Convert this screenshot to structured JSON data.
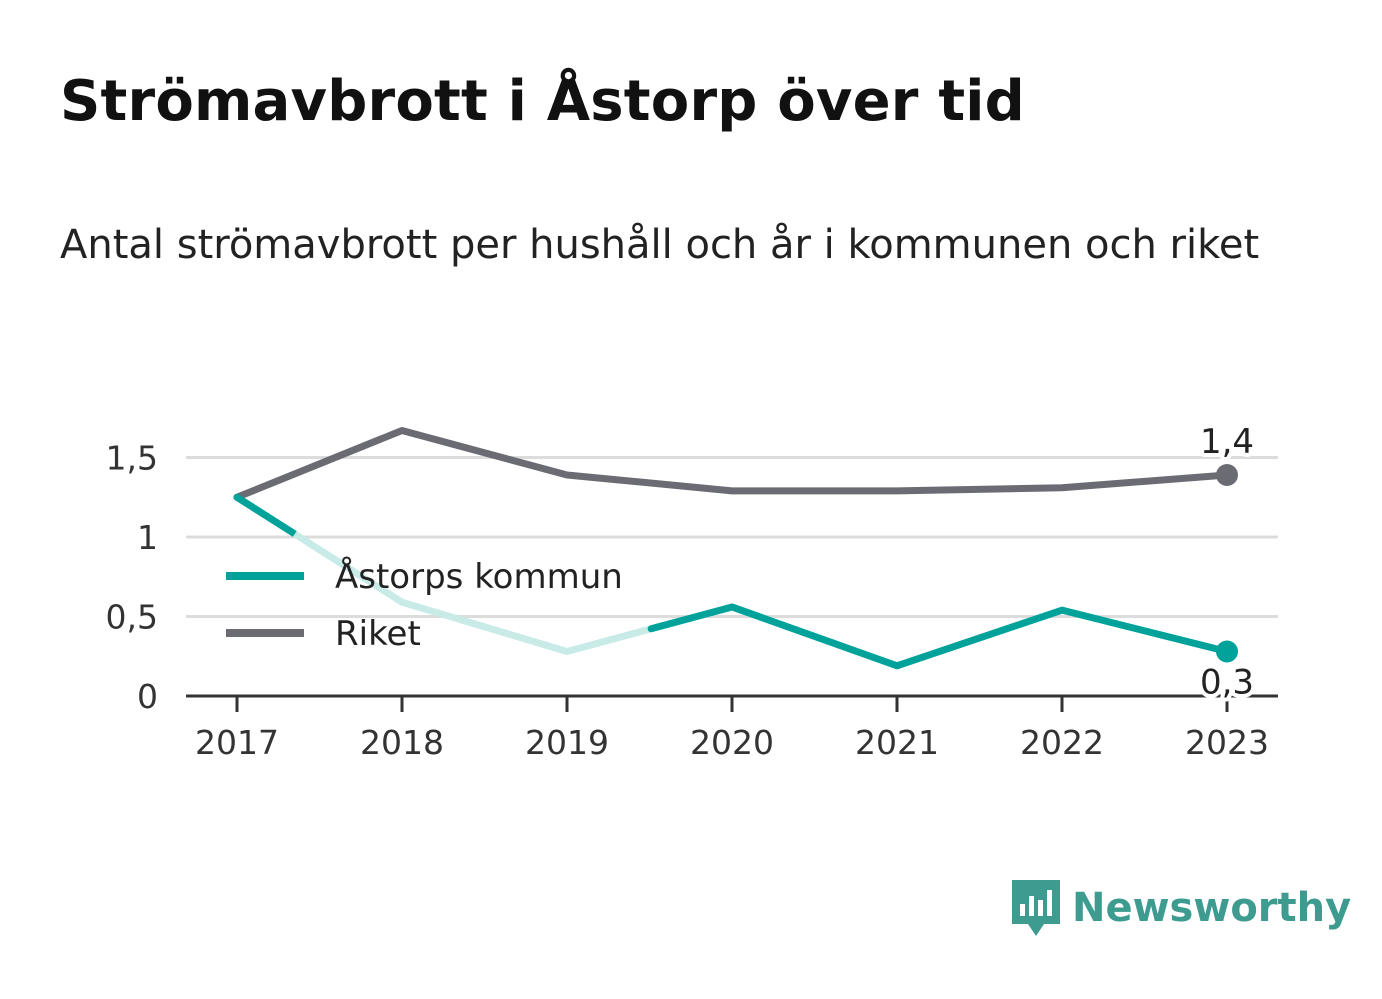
{
  "header": {
    "title": "Strömavbrott i Åstorp över tid",
    "subtitle": "Antal strömavbrott per hushåll och år i kommunen och riket"
  },
  "brand": {
    "name": "Newsworthy",
    "icon": "newsworthy-logo-icon",
    "color": "#3d9b8f"
  },
  "chart_data": {
    "type": "line",
    "x": [
      "2017",
      "2018",
      "2019",
      "2020",
      "2021",
      "2022",
      "2023"
    ],
    "ylim": [
      0,
      1.7
    ],
    "yticks": [
      {
        "value": 0,
        "label": "0"
      },
      {
        "value": 0.5,
        "label": "0,5"
      },
      {
        "value": 1,
        "label": "1"
      },
      {
        "value": 1.5,
        "label": "1,5"
      }
    ],
    "grid": true,
    "legend": "left",
    "series": [
      {
        "name": "Åstorps kommun",
        "color": "#00a29a",
        "fadedColor": "#c8ebe8",
        "values": [
          1.25,
          0.59,
          0.28,
          0.56,
          0.19,
          0.54,
          0.28
        ],
        "endLabel": "0,3"
      },
      {
        "name": "Riket",
        "color": "#6b6b73",
        "values": [
          1.25,
          1.67,
          1.39,
          1.29,
          1.29,
          1.31,
          1.39
        ],
        "endLabel": "1,4"
      }
    ]
  }
}
